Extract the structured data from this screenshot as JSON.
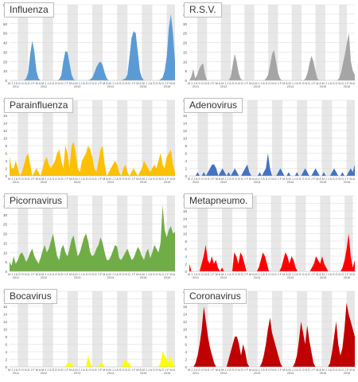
{
  "chart_data": [
    {
      "type": "area",
      "title": "Influenza",
      "color": "#5b9bd5",
      "ylim": [
        0,
        80
      ],
      "ticks": [
        0,
        10,
        20,
        30,
        40,
        50,
        60,
        70,
        80
      ],
      "values": [
        0,
        0,
        0,
        0,
        0,
        0,
        0,
        0,
        2,
        8,
        28,
        42,
        30,
        10,
        2,
        0,
        0,
        0,
        0,
        0,
        0,
        0,
        0,
        0,
        1,
        5,
        20,
        31,
        30,
        18,
        6,
        1,
        0,
        0,
        0,
        0,
        0,
        0,
        0,
        1,
        3,
        8,
        14,
        18,
        20,
        16,
        8,
        2,
        0,
        0,
        0,
        0,
        0,
        0,
        0,
        1,
        2,
        6,
        25,
        45,
        52,
        50,
        30,
        10,
        3,
        0,
        0,
        0,
        0,
        0,
        0,
        0,
        0,
        1,
        3,
        10,
        25,
        55,
        70,
        50,
        20
      ]
    },
    {
      "type": "area",
      "title": "R.S.V.",
      "color": "#a5a5a5",
      "ylim": [
        0,
        40
      ],
      "ticks": [
        0,
        5,
        10,
        15,
        20,
        25,
        30,
        35,
        40
      ],
      "values": [
        0,
        2,
        6,
        1,
        3,
        6,
        8,
        9,
        3,
        0,
        0,
        0,
        0,
        0,
        0,
        0,
        0,
        0,
        0,
        0,
        0,
        2,
        8,
        14,
        10,
        4,
        1,
        0,
        0,
        0,
        0,
        0,
        0,
        0,
        0,
        0,
        0,
        0,
        0,
        1,
        3,
        8,
        14,
        16,
        10,
        4,
        1,
        0,
        0,
        0,
        0,
        0,
        0,
        0,
        0,
        0,
        0,
        0,
        0,
        1,
        4,
        9,
        13,
        10,
        5,
        1,
        0,
        0,
        0,
        0,
        0,
        0,
        0,
        0,
        0,
        0,
        1,
        4,
        9,
        14,
        20,
        25,
        10,
        5,
        3
      ]
    },
    {
      "type": "area",
      "title": "Parainfluenza",
      "color": "#ffc000",
      "ylim": [
        0,
        20
      ],
      "ticks": [
        0,
        2,
        4,
        6,
        8,
        10,
        12,
        14,
        16,
        18,
        20
      ],
      "values": [
        5,
        2,
        2,
        4,
        2,
        0,
        1,
        3,
        5,
        6,
        3,
        0,
        1,
        2,
        1,
        0,
        2,
        4,
        5,
        3,
        2,
        3,
        4,
        6,
        7,
        4,
        2,
        8,
        6,
        2,
        8,
        9,
        6,
        2,
        1,
        4,
        5,
        6,
        8,
        7,
        5,
        2,
        1,
        4,
        7,
        8,
        3,
        0,
        1,
        2,
        3,
        4,
        3,
        1,
        0,
        2,
        3,
        1,
        0,
        1,
        2,
        1,
        0,
        1,
        2,
        4,
        3,
        2,
        1,
        2,
        3,
        2,
        4,
        6,
        3,
        2,
        5,
        6,
        7,
        3,
        1
      ]
    },
    {
      "type": "area",
      "title": "Adenovirus",
      "color": "#4472c4",
      "ylim": [
        0,
        20
      ],
      "ticks": [
        0,
        2,
        4,
        6,
        8,
        10,
        12,
        14,
        16,
        18,
        20
      ],
      "values": [
        0,
        0,
        0,
        0,
        1,
        0,
        0,
        1,
        0,
        1,
        2,
        3,
        3,
        2,
        0,
        1,
        2,
        1,
        0,
        1,
        0,
        1,
        2,
        1,
        0,
        0,
        1,
        2,
        3,
        1,
        0,
        0,
        0,
        0,
        1,
        0,
        1,
        2,
        6,
        2,
        0,
        0,
        0,
        1,
        2,
        1,
        0,
        0,
        1,
        0,
        0,
        0,
        1,
        0,
        0,
        1,
        2,
        1,
        0,
        0,
        1,
        2,
        1,
        0,
        0,
        1,
        0,
        0,
        0,
        1,
        2,
        1,
        0,
        0,
        1,
        0,
        0,
        1,
        2,
        1,
        3
      ]
    },
    {
      "type": "area",
      "title": "Picornavirus",
      "color": "#70ad47",
      "ylim": [
        0,
        40
      ],
      "ticks": [
        0,
        5,
        10,
        15,
        20,
        25,
        30,
        35,
        40
      ],
      "values": [
        5,
        3,
        8,
        4,
        6,
        9,
        10,
        8,
        5,
        7,
        10,
        12,
        8,
        6,
        4,
        7,
        11,
        14,
        10,
        12,
        16,
        20,
        14,
        8,
        6,
        12,
        14,
        10,
        8,
        12,
        17,
        19,
        13,
        8,
        10,
        14,
        18,
        20,
        16,
        10,
        8,
        9,
        12,
        14,
        18,
        15,
        10,
        6,
        6,
        8,
        11,
        14,
        13,
        7,
        6,
        8,
        10,
        12,
        9,
        6,
        7,
        10,
        13,
        11,
        8,
        6,
        10,
        12,
        7,
        10,
        14,
        12,
        10,
        15,
        35,
        22,
        18,
        22,
        24,
        20,
        21
      ]
    },
    {
      "type": "area",
      "title": "Metapneumo.",
      "color": "#ff0000",
      "ylim": [
        0,
        20
      ],
      "ticks": [
        0,
        2,
        4,
        6,
        8,
        10,
        12,
        14,
        16,
        18,
        20
      ],
      "values": [
        2,
        0,
        0,
        0,
        0,
        0,
        2,
        4,
        7,
        3,
        2,
        4,
        2,
        3,
        1,
        0,
        1,
        0,
        0,
        0,
        0,
        0,
        5,
        4,
        2,
        5,
        4,
        2,
        0,
        0,
        0,
        0,
        0,
        0,
        1,
        3,
        5,
        4,
        2,
        0,
        0,
        0,
        0,
        0,
        0,
        1,
        3,
        5,
        4,
        2,
        4,
        3,
        1,
        0,
        0,
        0,
        0,
        0,
        0,
        0,
        1,
        2,
        4,
        3,
        2,
        4,
        2,
        1,
        0,
        0,
        0,
        0,
        0,
        0,
        0,
        1,
        3,
        6,
        10,
        4,
        1,
        3
      ]
    },
    {
      "type": "area",
      "title": "Bocavirus",
      "color": "#ffff00",
      "ylim": [
        0,
        20
      ],
      "ticks": [
        0,
        2,
        4,
        6,
        8,
        10,
        12,
        14,
        16,
        18,
        20
      ],
      "values": [
        0,
        0,
        0,
        0,
        0,
        0,
        0,
        0,
        0,
        0,
        0,
        0,
        0,
        0,
        0,
        0,
        0,
        0,
        0,
        0,
        0,
        0,
        0,
        0,
        0,
        0,
        0,
        0,
        1,
        1,
        1,
        0,
        0,
        0,
        0,
        0,
        0,
        0,
        3,
        1,
        0,
        0,
        0,
        0,
        1,
        1,
        0,
        0,
        0,
        0,
        0,
        0,
        0,
        0,
        0,
        1,
        2,
        1,
        1,
        0,
        0,
        0,
        0,
        0,
        0,
        0,
        0,
        0,
        0,
        0,
        0,
        0,
        0,
        1,
        4,
        3,
        2,
        1,
        3,
        1,
        0
      ]
    },
    {
      "type": "area",
      "title": "Coronavirus",
      "color": "#c00000",
      "ylim": [
        0,
        20
      ],
      "ticks": [
        0,
        2,
        4,
        6,
        8,
        10,
        12,
        14,
        16,
        18,
        20
      ],
      "values": [
        0,
        0,
        0,
        1,
        3,
        6,
        10,
        16,
        12,
        8,
        5,
        3,
        1,
        0,
        0,
        0,
        0,
        0,
        0,
        2,
        4,
        6,
        8,
        8,
        6,
        3,
        6,
        4,
        1,
        0,
        0,
        0,
        0,
        0,
        0,
        1,
        3,
        6,
        10,
        13,
        9,
        7,
        5,
        3,
        1,
        0,
        0,
        0,
        0,
        0,
        0,
        1,
        3,
        7,
        12,
        9,
        6,
        11,
        7,
        4,
        1,
        0,
        0,
        0,
        0,
        0,
        0,
        0,
        1,
        4,
        8,
        12,
        6,
        3,
        5,
        10,
        17,
        14,
        12,
        10,
        8
      ]
    }
  ],
  "month_labels": "M J  J  A  S  O  N  D  J  F  M  A  M  J  J  A  S  O  N  D  J  F  M  A  M  J  J  A  S  O  N  D  J  F  M  A  M  J  J  A  S  O  N  D  J  F  M  A  M  J  J  A  S  O  N  D  J  F  M  A",
  "years": [
    "2011",
    "2012",
    "2013",
    "2014",
    "2015",
    "2016"
  ]
}
